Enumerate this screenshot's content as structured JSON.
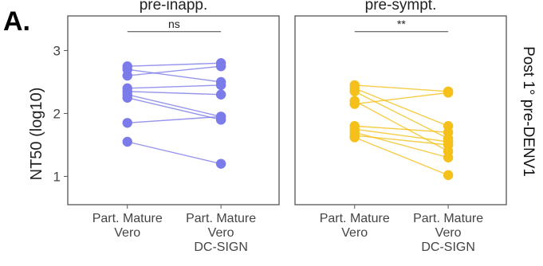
{
  "panel_label": "A.",
  "chart_data": {
    "type": "scatter",
    "ylabel": "NT50 (log10)",
    "ylim": [
      0.55,
      3.55
    ],
    "yticks": [
      1,
      2,
      3
    ],
    "categories": [
      [
        "Part. Mature",
        "Vero"
      ],
      [
        "Part. Mature",
        "Vero",
        "DC-SIGN"
      ]
    ],
    "row_facet_label": "Post 1° pre-DENV1",
    "grid": false,
    "panels": [
      {
        "title": "pre-inapp.",
        "color": "#7b7bea",
        "significance": "ns",
        "pairs": [
          [
            2.75,
            2.8
          ],
          [
            2.7,
            2.5
          ],
          [
            2.6,
            2.75
          ],
          [
            2.4,
            2.45
          ],
          [
            2.35,
            2.3
          ],
          [
            2.3,
            1.95
          ],
          [
            2.25,
            1.9
          ],
          [
            1.85,
            1.95
          ],
          [
            1.55,
            1.2
          ]
        ]
      },
      {
        "title": "pre-sympt.",
        "color": "#f5c01a",
        "significance": "**",
        "pairs": [
          [
            2.45,
            2.35
          ],
          [
            2.4,
            1.8
          ],
          [
            2.35,
            1.6
          ],
          [
            2.2,
            1.4
          ],
          [
            2.15,
            2.33
          ],
          [
            1.8,
            1.7
          ],
          [
            1.75,
            1.55
          ],
          [
            1.7,
            1.3
          ],
          [
            1.65,
            1.5
          ],
          [
            1.62,
            1.02
          ]
        ]
      }
    ]
  }
}
